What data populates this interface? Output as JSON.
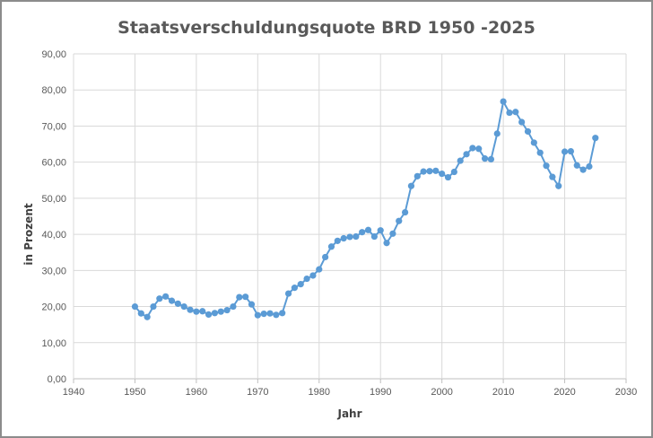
{
  "chart_data": {
    "type": "line",
    "title": "Staatsverschuldungsquote BRD 1950 -2025",
    "xlabel": "Jahr",
    "ylabel": "in Prozent",
    "xlim": [
      1940,
      2030
    ],
    "ylim": [
      0,
      90
    ],
    "x_ticks": [
      "1940",
      "1950",
      "1960",
      "1970",
      "1980",
      "1990",
      "2000",
      "2010",
      "2020",
      "2030"
    ],
    "y_ticks": [
      "0,00",
      "10,00",
      "20,00",
      "30,00",
      "40,00",
      "50,00",
      "60,00",
      "70,00",
      "80,00",
      "90,00"
    ],
    "grid": "vertical and horizontal",
    "legend": "none",
    "color": "#5b9bd5",
    "series": [
      {
        "x": [
          1950,
          1951,
          1952,
          1953,
          1954,
          1955,
          1956,
          1957,
          1958,
          1959,
          1960,
          1961,
          1962,
          1963,
          1964,
          1965,
          1966,
          1967,
          1968,
          1969,
          1970,
          1971,
          1972,
          1973,
          1974,
          1975,
          1976,
          1977,
          1978,
          1979,
          1980,
          1981,
          1982,
          1983,
          1984,
          1985,
          1986,
          1987,
          1988,
          1989,
          1990,
          1991,
          1992,
          1993,
          1994,
          1995,
          1996,
          1997,
          1998,
          1999,
          2000,
          2001,
          2002,
          2003,
          2004,
          2005,
          2006,
          2007,
          2008,
          2009,
          2010,
          2011,
          2012,
          2013,
          2014,
          2015,
          2016,
          2017,
          2018,
          2019,
          2020,
          2021,
          2022,
          2023,
          2024,
          2025
        ],
        "values": [
          20.0,
          18.1,
          17.1,
          20.0,
          22.2,
          22.8,
          21.6,
          20.8,
          20.0,
          19.1,
          18.6,
          18.7,
          17.8,
          18.2,
          18.6,
          19.0,
          20.0,
          22.6,
          22.7,
          20.6,
          17.6,
          18.0,
          18.1,
          17.7,
          18.2,
          23.6,
          25.2,
          26.2,
          27.7,
          28.6,
          30.3,
          33.7,
          36.6,
          38.2,
          38.9,
          39.3,
          39.4,
          40.6,
          41.2,
          39.4,
          41.1,
          37.6,
          40.2,
          43.7,
          46.1,
          53.4,
          56.1,
          57.4,
          57.5,
          57.6,
          56.8,
          55.8,
          57.3,
          60.4,
          62.2,
          63.9,
          63.7,
          61.0,
          60.8,
          67.9,
          76.8,
          73.7,
          73.9,
          71.1,
          68.5,
          65.4,
          62.6,
          59.0,
          55.9,
          53.4,
          62.9,
          63.0,
          59.1,
          57.9,
          58.8,
          66.7
        ]
      }
    ]
  }
}
